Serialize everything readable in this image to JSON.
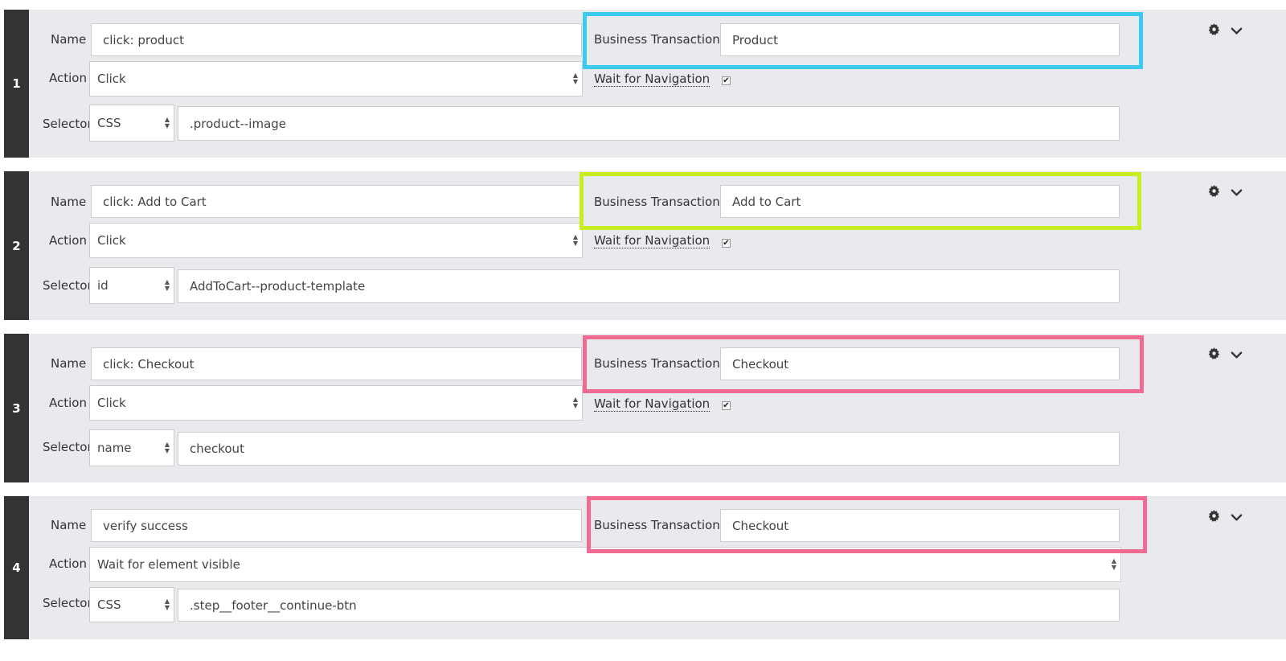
{
  "labels": {
    "name": "Name",
    "action": "Action",
    "selector": "Selector",
    "business_transaction": "Business Transaction",
    "wait_for_navigation": "Wait for Navigation"
  },
  "icons": {
    "settings": "gear-icon",
    "expand": "chevron-down-icon"
  },
  "highlight_colors": {
    "step1": "#3ccaf0",
    "step2": "#c6ee23",
    "step3": "#f06a91",
    "step4": "#f06a91"
  },
  "steps": [
    {
      "number": "1",
      "name": "click: product",
      "action": "Click",
      "business_transaction": "Product",
      "wait_for_navigation": true,
      "selector_type": "CSS",
      "selector_value": ".product--image"
    },
    {
      "number": "2",
      "name": "click: Add to Cart",
      "action": "Click",
      "business_transaction": "Add to Cart",
      "wait_for_navigation": true,
      "selector_type": "id",
      "selector_value": "AddToCart--product-template"
    },
    {
      "number": "3",
      "name": "click: Checkout",
      "action": "Click",
      "business_transaction": "Checkout",
      "wait_for_navigation": true,
      "selector_type": "name",
      "selector_value": "checkout"
    },
    {
      "number": "4",
      "name": "verify success",
      "action": "Wait for element visible",
      "business_transaction": "Checkout",
      "selector_type": "CSS",
      "selector_value": ".step__footer__continue-btn"
    }
  ]
}
